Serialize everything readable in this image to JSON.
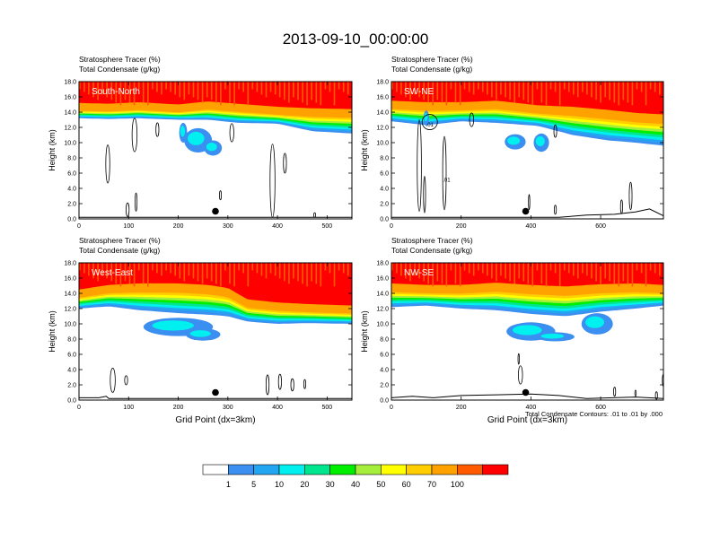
{
  "figure": {
    "title": "2013-09-10_00:00:00",
    "contour_note": "Total Condensate Contours: .01 to .01 by .000"
  },
  "colors": {
    "levels": [
      "#ffffff",
      "#3b8ff0",
      "#23a6f2",
      "#00f0f0",
      "#00e68f",
      "#00ee00",
      "#a6ee3c",
      "#ffff00",
      "#ffcd00",
      "#ffa200",
      "#ff5a00",
      "#ff0000"
    ],
    "marker": "#000000",
    "contour": "#000000"
  },
  "chart_data": {
    "type": "contour-cross-sections",
    "colorbar": {
      "labels": [
        "1",
        "5",
        "10",
        "20",
        "30",
        "40",
        "50",
        "60",
        "70",
        "100"
      ],
      "units": "%"
    },
    "panels": [
      {
        "id": "p1",
        "header1": "Stratosphere Tracer   (%)",
        "header2": "Total Condensate   (g/kg)",
        "label": "South-North",
        "ylabel": "Height (km)",
        "xlabel": "",
        "ylim": [
          0,
          18
        ],
        "yticks": [
          "0.0",
          "2.0",
          "4.0",
          "6.0",
          "8.0",
          "10.0",
          "12.0",
          "14.0",
          "16.0",
          "18.0"
        ],
        "xlim": [
          0,
          550
        ],
        "xticks": [
          0,
          100,
          200,
          300,
          400,
          500
        ],
        "tropopause": [
          [
            0,
            14.3
          ],
          [
            60,
            14.2
          ],
          [
            120,
            14.4
          ],
          [
            200,
            14.1
          ],
          [
            260,
            14.5
          ],
          [
            320,
            14.2
          ],
          [
            400,
            13.8
          ],
          [
            470,
            13.6
          ],
          [
            550,
            13.5
          ]
        ],
        "layer_base": [
          [
            0,
            13.2
          ],
          [
            60,
            13.1
          ],
          [
            120,
            13.2
          ],
          [
            200,
            13.0
          ],
          [
            260,
            13.0
          ],
          [
            320,
            12.6
          ],
          [
            400,
            12.5
          ],
          [
            470,
            11.5
          ],
          [
            550,
            11.2
          ]
        ],
        "blobs": [
          {
            "cx": 240,
            "cy": 10.3,
            "rx": 28,
            "ry": 1.6
          },
          {
            "cx": 270,
            "cy": 9.3,
            "rx": 18,
            "ry": 1.0
          },
          {
            "cx": 210,
            "cy": 11.3,
            "rx": 8,
            "ry": 1.3
          }
        ],
        "contours": [
          {
            "cx": 112,
            "cy": 11.0,
            "rx": 5,
            "ry": 2.2
          },
          {
            "cx": 58,
            "cy": 7.2,
            "rx": 4,
            "ry": 2.5
          },
          {
            "cx": 98,
            "cy": 1.2,
            "rx": 3,
            "ry": 0.9
          },
          {
            "cx": 115,
            "cy": 2.2,
            "rx": 2,
            "ry": 1.2
          },
          {
            "cx": 390,
            "cy": 5.0,
            "rx": 5,
            "ry": 4.8
          },
          {
            "cx": 415,
            "cy": 7.3,
            "rx": 3,
            "ry": 1.3
          },
          {
            "cx": 308,
            "cy": 11.3,
            "rx": 4,
            "ry": 1.2
          },
          {
            "cx": 158,
            "cy": 11.7,
            "rx": 3,
            "ry": 0.9
          },
          {
            "cx": 285,
            "cy": 3.1,
            "rx": 2,
            "ry": 0.6
          },
          {
            "cx": 475,
            "cy": 0.5,
            "rx": 2,
            "ry": 0.3
          }
        ],
        "terrain": [
          [
            0,
            0.2
          ],
          [
            550,
            0.2
          ]
        ],
        "marker": {
          "x": 275,
          "y": 1.0
        }
      },
      {
        "id": "p2",
        "header1": "Stratosphere Tracer   (%)",
        "header2": "Total Condensate   (g/kg)",
        "label": "SW-NE",
        "ylabel": "Height (km)",
        "xlabel": "",
        "ylim": [
          0,
          18
        ],
        "yticks": [
          "0.0",
          "2.0",
          "4.0",
          "6.0",
          "8.0",
          "10.0",
          "12.0",
          "14.0",
          "16.0",
          "18.0"
        ],
        "xlim": [
          0,
          780
        ],
        "xticks": [
          0,
          200,
          400,
          600
        ],
        "tropopause": [
          [
            0,
            14.6
          ],
          [
            100,
            14.4
          ],
          [
            200,
            14.4
          ],
          [
            300,
            14.6
          ],
          [
            420,
            14.0
          ],
          [
            520,
            13.8
          ],
          [
            620,
            13.4
          ],
          [
            700,
            13.0
          ],
          [
            780,
            12.8
          ]
        ],
        "layer_base": [
          [
            0,
            12.8
          ],
          [
            100,
            12.3
          ],
          [
            200,
            12.8
          ],
          [
            300,
            12.6
          ],
          [
            420,
            12.2
          ],
          [
            520,
            11.0
          ],
          [
            620,
            10.3
          ],
          [
            700,
            10.0
          ],
          [
            780,
            9.6
          ]
        ],
        "blobs": [
          {
            "cx": 355,
            "cy": 10.1,
            "rx": 30,
            "ry": 1.0
          },
          {
            "cx": 430,
            "cy": 10.0,
            "rx": 22,
            "ry": 1.2
          },
          {
            "cx": 100,
            "cy": 13.2,
            "rx": 8,
            "ry": 1.0
          }
        ],
        "contours": [
          {
            "cx": 110,
            "cy": 12.7,
            "rx": 22,
            "ry": 1.0
          },
          {
            "cx": 80,
            "cy": 7.0,
            "rx": 6,
            "ry": 6.0
          },
          {
            "cx": 152,
            "cy": 6.0,
            "rx": 5,
            "ry": 4.8
          },
          {
            "cx": 95,
            "cy": 3.2,
            "rx": 3,
            "ry": 2.4
          },
          {
            "cx": 230,
            "cy": 13.0,
            "rx": 6,
            "ry": 0.9
          },
          {
            "cx": 470,
            "cy": 11.5,
            "rx": 4,
            "ry": 0.8
          },
          {
            "cx": 686,
            "cy": 3.0,
            "rx": 4,
            "ry": 1.8
          },
          {
            "cx": 660,
            "cy": 1.6,
            "rx": 3,
            "ry": 0.9
          },
          {
            "cx": 395,
            "cy": 2.2,
            "rx": 2,
            "ry": 1.0
          },
          {
            "cx": 470,
            "cy": 1.2,
            "rx": 3,
            "ry": 0.6
          }
        ],
        "terrain": [
          [
            0,
            0.2
          ],
          [
            480,
            0.2
          ],
          [
            560,
            0.5
          ],
          [
            640,
            0.6
          ],
          [
            700,
            0.9
          ],
          [
            740,
            1.3
          ],
          [
            780,
            0.4
          ]
        ],
        "marker": {
          "x": 385,
          "y": 1.0
        },
        "contour_labels": [
          {
            "text": ".01",
            "x": 110,
            "y": 12.1
          },
          {
            "text": ".01",
            "x": 158,
            "y": 4.9
          }
        ]
      },
      {
        "id": "p3",
        "header1": "Stratosphere Tracer   (%)",
        "header2": "Total Condensate   (g/kg)",
        "label": "West-East",
        "ylabel": "Height (km)",
        "xlabel": "Grid Point (dx=3km)",
        "ylim": [
          0,
          18
        ],
        "yticks": [
          "0.0",
          "2.0",
          "4.0",
          "6.0",
          "8.0",
          "10.0",
          "12.0",
          "14.0",
          "16.0",
          "18.0"
        ],
        "xlim": [
          0,
          550
        ],
        "xticks": [
          0,
          100,
          200,
          300,
          400,
          500
        ],
        "tropopause": [
          [
            0,
            13.6
          ],
          [
            60,
            14.2
          ],
          [
            120,
            14.4
          ],
          [
            200,
            14.4
          ],
          [
            260,
            14.2
          ],
          [
            300,
            13.8
          ],
          [
            340,
            12.3
          ],
          [
            400,
            11.9
          ],
          [
            460,
            11.7
          ],
          [
            550,
            11.5
          ]
        ],
        "layer_base": [
          [
            0,
            12.0
          ],
          [
            60,
            12.3
          ],
          [
            120,
            11.8
          ],
          [
            200,
            11.4
          ],
          [
            260,
            11.2
          ],
          [
            300,
            11.0
          ],
          [
            340,
            10.3
          ],
          [
            400,
            10.0
          ],
          [
            460,
            10.1
          ],
          [
            550,
            10.0
          ]
        ],
        "blobs": [
          {
            "cx": 200,
            "cy": 9.6,
            "rx": 70,
            "ry": 1.2
          },
          {
            "cx": 250,
            "cy": 8.6,
            "rx": 35,
            "ry": 0.8
          }
        ],
        "contours": [
          {
            "cx": 68,
            "cy": 2.6,
            "rx": 5,
            "ry": 1.6
          },
          {
            "cx": 95,
            "cy": 2.6,
            "rx": 3,
            "ry": 0.6
          },
          {
            "cx": 380,
            "cy": 2.0,
            "rx": 3,
            "ry": 1.3
          },
          {
            "cx": 405,
            "cy": 2.4,
            "rx": 3,
            "ry": 1.0
          },
          {
            "cx": 430,
            "cy": 2.0,
            "rx": 3,
            "ry": 0.8
          },
          {
            "cx": 455,
            "cy": 2.1,
            "rx": 2,
            "ry": 0.6
          }
        ],
        "terrain": [
          [
            0,
            0.3
          ],
          [
            40,
            0.3
          ],
          [
            55,
            0.5
          ],
          [
            60,
            0.2
          ],
          [
            550,
            0.2
          ]
        ],
        "marker": {
          "x": 275,
          "y": 1.0
        }
      },
      {
        "id": "p4",
        "header1": "Stratosphere Tracer   (%)",
        "header2": "Total Condensate   (g/kg)",
        "label": "NW-SE",
        "ylabel": "Height (km)",
        "xlabel": "Grid Point (dx=3km)",
        "ylim": [
          0,
          18
        ],
        "yticks": [
          "0.0",
          "2.0",
          "4.0",
          "6.0",
          "8.0",
          "10.0",
          "12.0",
          "14.0",
          "16.0",
          "18.0"
        ],
        "xlim": [
          0,
          780
        ],
        "xticks": [
          0,
          200,
          400,
          600
        ],
        "tropopause": [
          [
            0,
            14.4
          ],
          [
            100,
            14.2
          ],
          [
            200,
            14.2
          ],
          [
            300,
            14.5
          ],
          [
            400,
            14.2
          ],
          [
            500,
            14.0
          ],
          [
            600,
            14.3
          ],
          [
            700,
            14.4
          ],
          [
            780,
            14.2
          ]
        ],
        "layer_base": [
          [
            0,
            12.2
          ],
          [
            100,
            12.4
          ],
          [
            200,
            12.0
          ],
          [
            300,
            11.8
          ],
          [
            400,
            11.3
          ],
          [
            500,
            11.0
          ],
          [
            600,
            11.6
          ],
          [
            700,
            12.0
          ],
          [
            780,
            12.4
          ]
        ],
        "blobs": [
          {
            "cx": 400,
            "cy": 9.0,
            "rx": 70,
            "ry": 1.2
          },
          {
            "cx": 470,
            "cy": 8.3,
            "rx": 55,
            "ry": 0.6
          },
          {
            "cx": 590,
            "cy": 10.0,
            "rx": 45,
            "ry": 1.4
          }
        ],
        "contours": [
          {
            "cx": 370,
            "cy": 3.3,
            "rx": 6,
            "ry": 1.2
          },
          {
            "cx": 365,
            "cy": 5.4,
            "rx": 2,
            "ry": 0.7
          },
          {
            "cx": 640,
            "cy": 1.1,
            "rx": 3,
            "ry": 0.6
          },
          {
            "cx": 700,
            "cy": 0.9,
            "rx": 2,
            "ry": 0.4
          },
          {
            "cx": 760,
            "cy": 0.6,
            "rx": 3,
            "ry": 0.5
          },
          {
            "cx": 780,
            "cy": 2.6,
            "rx": 3,
            "ry": 0.8
          }
        ],
        "terrain": [
          [
            0,
            0.3
          ],
          [
            60,
            0.5
          ],
          [
            120,
            0.3
          ],
          [
            200,
            0.6
          ],
          [
            300,
            0.7
          ],
          [
            400,
            0.8
          ],
          [
            480,
            0.6
          ],
          [
            560,
            0.2
          ],
          [
            700,
            0.4
          ],
          [
            780,
            0.2
          ]
        ],
        "marker": {
          "x": 385,
          "y": 1.0
        }
      }
    ]
  }
}
